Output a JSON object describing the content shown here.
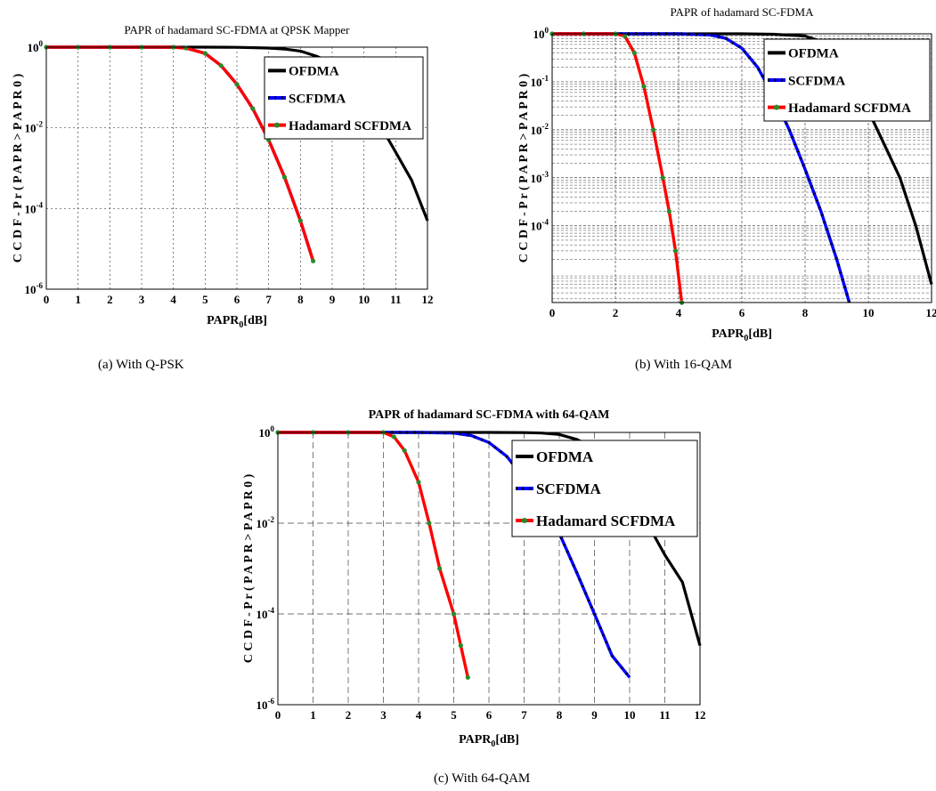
{
  "chart_data": [
    {
      "type": "line",
      "title": "PAPR of hadamard SC-FDMA at QPSK Mapper",
      "caption": "(a)    With Q-PSK",
      "xlabel": "PAPR",
      "xlabel_sub": "0",
      "xlabel_tail": "[dB]",
      "ylabel": "C C D F  -  P r ( P A P R > P A P R 0 )",
      "xlim": [
        0,
        12
      ],
      "ylim_log10": [
        -6,
        0
      ],
      "y_scale": "log",
      "grid": "dotted major",
      "legend_position": "top-right",
      "x_tick_labels": [
        "0",
        "1",
        "2",
        "3",
        "4",
        "5",
        "6",
        "7",
        "8",
        "9",
        "10",
        "11",
        "12"
      ],
      "y_tick_labels": [
        {
          "base": "10",
          "exp": "0"
        },
        {
          "base": "10",
          "exp": "-2"
        },
        {
          "base": "10",
          "exp": "-4"
        },
        {
          "base": "10",
          "exp": "-6"
        }
      ],
      "series": [
        {
          "name": "OFDMA",
          "color": "#000000",
          "x": [
            0,
            1,
            2,
            3,
            4,
            5,
            6,
            7,
            7.5,
            8,
            8.5,
            9,
            9.5,
            10,
            10.5,
            11,
            11.5,
            12
          ],
          "y": [
            1,
            1,
            1,
            1,
            1,
            1,
            0.99,
            0.95,
            0.9,
            0.8,
            0.6,
            0.4,
            0.18,
            0.05,
            0.012,
            0.0025,
            0.0005,
            5e-05
          ]
        },
        {
          "name": "SCFDMA",
          "color": "#0000ff",
          "x": [
            0,
            1,
            2,
            3,
            4,
            4.4,
            5,
            5.5,
            6,
            6.5,
            7,
            7.5,
            8,
            8.4
          ],
          "y": [
            1,
            1,
            1,
            1,
            1,
            0.95,
            0.7,
            0.35,
            0.12,
            0.03,
            0.005,
            0.0006,
            5e-05,
            5e-06
          ]
        },
        {
          "name": "Hadamard SCFDMA",
          "color": "#ff0000",
          "x": [
            0,
            1,
            2,
            3,
            4,
            4.4,
            5,
            5.5,
            6,
            6.5,
            7,
            7.5,
            8,
            8.4
          ],
          "y": [
            1,
            1,
            1,
            1,
            1,
            0.95,
            0.7,
            0.35,
            0.12,
            0.03,
            0.005,
            0.0006,
            5e-05,
            5e-06
          ]
        }
      ]
    },
    {
      "type": "line",
      "title": "PAPR of hadamard SC-FDMA",
      "caption": "(b) With 16-QAM",
      "xlabel": "PAPR",
      "xlabel_sub": "0",
      "xlabel_tail": "[dB]",
      "ylabel": "C C D F  -  P r ( P A P R > P A P R 0 )",
      "xlim": [
        0,
        12
      ],
      "ylim_log10": [
        -5.6,
        0
      ],
      "y_scale": "log",
      "grid": "dashed major and minor",
      "legend_position": "top-right",
      "x_tick_labels": [
        "0",
        "2",
        "4",
        "6",
        "8",
        "10",
        "12"
      ],
      "y_tick_labels": [
        {
          "base": "10",
          "exp": "0"
        },
        {
          "base": "10",
          "exp": "-1"
        },
        {
          "base": "10",
          "exp": "-2"
        },
        {
          "base": "10",
          "exp": "-3"
        },
        {
          "base": "10",
          "exp": "-4"
        }
      ],
      "series": [
        {
          "name": "OFDMA",
          "color": "#000000",
          "x": [
            0,
            2,
            4,
            6,
            7,
            8,
            8.5,
            9,
            9.5,
            10,
            10.5,
            11,
            11.5,
            12
          ],
          "y": [
            1,
            1,
            1,
            1,
            0.98,
            0.9,
            0.7,
            0.4,
            0.12,
            0.025,
            0.005,
            0.001,
            0.0001,
            6e-06
          ]
        },
        {
          "name": "SCFDMA",
          "color": "#0000ff",
          "x": [
            0,
            2,
            4,
            5,
            5.5,
            6,
            6.5,
            7,
            7.5,
            8,
            8.5,
            9,
            9.4
          ],
          "y": [
            1,
            1,
            1,
            0.95,
            0.8,
            0.5,
            0.2,
            0.05,
            0.01,
            0.0015,
            0.0002,
            2e-05,
            2.5e-06
          ]
        },
        {
          "name": "Hadamard SCFDMA",
          "color": "#ff0000",
          "x": [
            0,
            1,
            2,
            2.3,
            2.6,
            2.9,
            3.2,
            3.5,
            3.7,
            3.9,
            4.1
          ],
          "y": [
            1,
            1,
            1,
            0.9,
            0.4,
            0.08,
            0.01,
            0.001,
            0.0002,
            3e-05,
            2.5e-06
          ]
        }
      ]
    },
    {
      "type": "line",
      "title": "PAPR of hadamard SC-FDMA with 64-QAM",
      "caption": "(c) With 64-QAM",
      "xlabel": "PAPR",
      "xlabel_sub": "0",
      "xlabel_tail": "[dB]",
      "ylabel": "C C D F  -  P r ( P A P R > P A P R 0 )",
      "xlim": [
        0,
        12
      ],
      "ylim_log10": [
        -6,
        0
      ],
      "y_scale": "log",
      "grid": "dashed major",
      "legend_position": "top-right",
      "x_tick_labels": [
        "0",
        "1",
        "2",
        "3",
        "4",
        "5",
        "6",
        "7",
        "8",
        "9",
        "10",
        "11",
        "12"
      ],
      "y_tick_labels": [
        {
          "base": "10",
          "exp": "0"
        },
        {
          "base": "10",
          "exp": "-2"
        },
        {
          "base": "10",
          "exp": "-4"
        },
        {
          "base": "10",
          "exp": "-6"
        }
      ],
      "series": [
        {
          "name": "OFDMA",
          "color": "#000000",
          "x": [
            0,
            2,
            4,
            6,
            7,
            7.5,
            8,
            8.5,
            9,
            9.5,
            10,
            10.5,
            11,
            11.5,
            12
          ],
          "y": [
            1,
            1,
            1,
            1,
            0.99,
            0.97,
            0.9,
            0.7,
            0.45,
            0.2,
            0.05,
            0.01,
            0.002,
            0.0005,
            2e-05
          ]
        },
        {
          "name": "SCFDMA",
          "color": "#0000ff",
          "x": [
            0,
            2,
            4,
            5,
            5.5,
            6,
            6.5,
            7,
            7.5,
            8,
            8.5,
            9,
            9.5,
            10
          ],
          "y": [
            1,
            1,
            1,
            0.97,
            0.85,
            0.6,
            0.3,
            0.1,
            0.03,
            0.006,
            0.0008,
            0.0001,
            1.2e-05,
            4e-06
          ]
        },
        {
          "name": "Hadamard SCFDMA",
          "color": "#ff0000",
          "x": [
            0,
            1,
            2,
            3,
            3.3,
            3.6,
            4,
            4.3,
            4.6,
            5,
            5.2,
            5.4
          ],
          "y": [
            1,
            1,
            1,
            1,
            0.8,
            0.4,
            0.08,
            0.01,
            0.001,
            0.0001,
            2e-05,
            4e-06
          ]
        }
      ]
    }
  ]
}
